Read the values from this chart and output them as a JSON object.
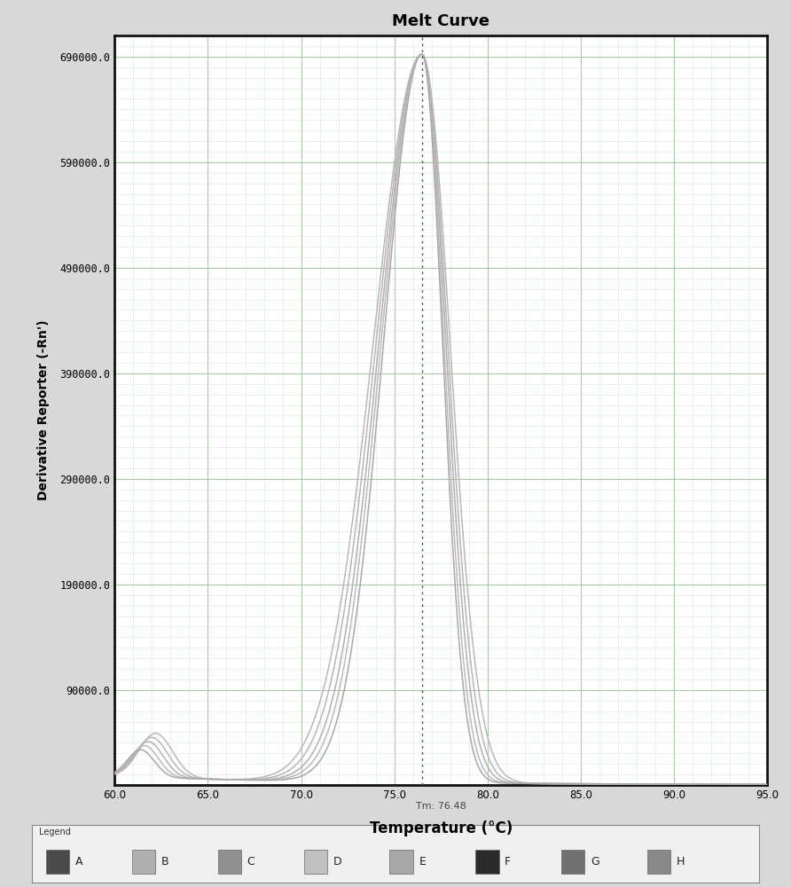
{
  "title": "Melt Curve",
  "xlabel": "Temperature (°C)",
  "ylabel": "Derivative Reporter (-Rn')",
  "xlim": [
    60.0,
    95.0
  ],
  "ylim": [
    0,
    710000
  ],
  "yticks": [
    0,
    90000,
    190000,
    290000,
    390000,
    490000,
    590000,
    690000
  ],
  "ytick_labels": [
    "",
    "90000.0",
    "190000.0",
    "290000.0",
    "390000.0",
    "490000.0",
    "590000.0",
    "690000.0"
  ],
  "xticks": [
    60.0,
    65.0,
    70.0,
    75.0,
    80.0,
    85.0,
    90.0,
    95.0
  ],
  "xtick_labels": [
    "60.0",
    "65.0",
    "70.0",
    "75.0",
    "80.0",
    "85.0",
    "90.0",
    "95.0"
  ],
  "tm_line_x": 76.48,
  "tm_label": "Tm: 76.48",
  "background_color": "#d8d8d8",
  "plot_bg_color": "#ffffff",
  "grid_major_color": "#a8c8a8",
  "grid_minor_color": "#d8e8d8",
  "line_colors": [
    "#a8a8a8",
    "#b8b8b8",
    "#c0b0b8",
    "#a0a0a0",
    "#b0a8b0"
  ],
  "legend_labels": [
    "A",
    "B",
    "C",
    "D",
    "E",
    "F",
    "G",
    "H"
  ],
  "legend_colors": [
    "#4a4a4a",
    "#b0b0b0",
    "#909090",
    "#c0c0c0",
    "#a8a8a8",
    "#2a2a2a",
    "#707070",
    "#888888"
  ]
}
